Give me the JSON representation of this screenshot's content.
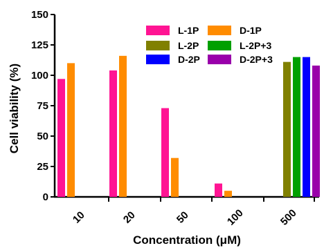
{
  "chart_data": {
    "type": "bar",
    "xlabel": "Concentration (μM)",
    "ylabel": "Cell viability (%)",
    "ylim": [
      0,
      150
    ],
    "yticks": [
      0,
      25,
      50,
      75,
      100,
      125,
      150
    ],
    "categories": [
      "10",
      "20",
      "50",
      "100",
      "500"
    ],
    "grid": false,
    "legend_position": "top-right",
    "series": [
      {
        "name": "L-1P",
        "color": "#ff1493",
        "values": [
          97,
          104,
          73,
          11,
          null
        ]
      },
      {
        "name": "D-1P",
        "color": "#ff8c00",
        "values": [
          110,
          116,
          32,
          5,
          null
        ]
      },
      {
        "name": "L-2P",
        "color": "#808000",
        "values": [
          null,
          null,
          null,
          null,
          111
        ]
      },
      {
        "name": "L-2P+3",
        "color": "#00a000",
        "values": [
          null,
          null,
          null,
          null,
          115
        ]
      },
      {
        "name": "D-2P",
        "color": "#0000ff",
        "values": [
          null,
          null,
          null,
          null,
          115
        ]
      },
      {
        "name": "D-2P+3",
        "color": "#9900aa",
        "values": [
          null,
          null,
          null,
          null,
          108
        ]
      }
    ]
  }
}
